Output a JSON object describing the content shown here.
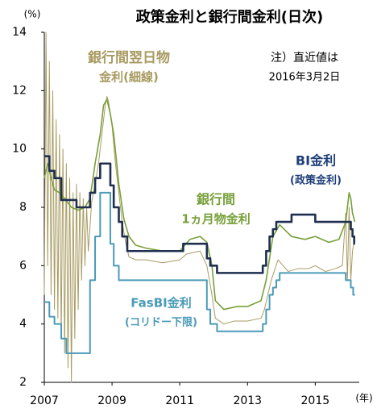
{
  "chart_data": {
    "type": "line",
    "title": "政策金利と銀行間金利(日次)",
    "y_unit": "(%)",
    "x_unit": "(年)",
    "xlim": [
      2007,
      2016.3
    ],
    "xticks": [
      2007,
      2009,
      2011,
      2013,
      2015
    ],
    "ylim": [
      2,
      14
    ],
    "yticks": [
      2,
      4,
      6,
      8,
      10,
      12,
      14
    ],
    "series": [
      {
        "name": "銀行間翌日物金利",
        "color": "#a89b62",
        "width": 1,
        "x": [
          2007.0,
          2007.05,
          2007.1,
          2007.15,
          2007.2,
          2007.25,
          2007.3,
          2007.35,
          2007.4,
          2007.45,
          2007.5,
          2007.55,
          2007.6,
          2007.65,
          2007.7,
          2007.75,
          2007.8,
          2007.85,
          2007.9,
          2007.95,
          2008.0,
          2008.05,
          2008.1,
          2008.15,
          2008.2,
          2008.25,
          2008.3,
          2008.4,
          2008.5,
          2008.6,
          2008.7,
          2008.8,
          2008.85,
          2008.9,
          2009.0,
          2009.1,
          2009.2,
          2009.3,
          2009.4,
          2009.5,
          2009.7,
          2010.0,
          2010.5,
          2011.0,
          2011.2,
          2011.6,
          2011.8,
          2011.95,
          2012.05,
          2012.3,
          2012.6,
          2013.0,
          2013.4,
          2013.5,
          2013.7,
          2013.9,
          2014.2,
          2014.5,
          2014.8,
          2015.0,
          2015.3,
          2015.6,
          2015.8,
          2015.9,
          2015.95,
          2016.0,
          2016.05,
          2016.1,
          2016.17
        ],
        "values": [
          5.0,
          14,
          6,
          13,
          5,
          12,
          4.5,
          11,
          4.2,
          10.5,
          3.5,
          10,
          3,
          9.5,
          2.5,
          9,
          2.0,
          8.5,
          3.5,
          8.8,
          4.5,
          8.5,
          5.5,
          8.3,
          6.0,
          8.0,
          6.5,
          8.2,
          8.8,
          9.5,
          10.5,
          11.5,
          11.8,
          11.6,
          10.8,
          9.5,
          8.5,
          7.5,
          6.8,
          6.3,
          6.2,
          6.2,
          6.1,
          6.2,
          6.4,
          6.5,
          6.0,
          5.0,
          4.2,
          4.0,
          4.1,
          4.1,
          4.2,
          4.5,
          5.5,
          6.2,
          5.8,
          5.9,
          5.9,
          6.0,
          5.8,
          5.9,
          6.0,
          7.8,
          5.5,
          8.0,
          5.5,
          6.5,
          7.0
        ]
      },
      {
        "name": "銀行間1ヵ月物金利",
        "color": "#77a03a",
        "width": 1.6,
        "x": [
          2007.0,
          2007.1,
          2007.2,
          2007.3,
          2007.45,
          2007.6,
          2007.8,
          2008.0,
          2008.2,
          2008.35,
          2008.5,
          2008.65,
          2008.75,
          2008.85,
          2008.95,
          2009.05,
          2009.2,
          2009.35,
          2009.5,
          2009.7,
          2010.0,
          2010.5,
          2011.0,
          2011.3,
          2011.6,
          2011.8,
          2011.95,
          2012.05,
          2012.3,
          2012.7,
          2013.0,
          2013.4,
          2013.55,
          2013.75,
          2013.95,
          2014.3,
          2014.7,
          2015.0,
          2015.4,
          2015.7,
          2015.9,
          2016.0,
          2016.05,
          2016.1,
          2016.17
        ],
        "values": [
          9.0,
          9.5,
          9.0,
          8.6,
          8.5,
          8.3,
          8.0,
          7.9,
          8.0,
          8.3,
          9.5,
          10.5,
          11.5,
          11.7,
          11.2,
          10.5,
          8.8,
          7.6,
          7.0,
          6.7,
          6.6,
          6.5,
          6.5,
          6.9,
          7.0,
          6.8,
          6.0,
          4.8,
          4.5,
          4.6,
          4.6,
          4.8,
          5.5,
          7.0,
          7.4,
          7.0,
          6.9,
          7.0,
          6.8,
          6.9,
          7.5,
          8.5,
          8.3,
          7.8,
          7.5
        ]
      },
      {
        "name": "FasBI金利",
        "color": "#4a9ab8",
        "width": 2,
        "step": true,
        "x": [
          2007.0,
          2007.15,
          2007.3,
          2007.5,
          2007.65,
          2008.35,
          2008.5,
          2008.65,
          2008.95,
          2009.05,
          2009.2,
          2011.8,
          2011.9,
          2012.1,
          2013.45,
          2013.55,
          2013.65,
          2013.75,
          2013.85,
          2013.95,
          2015.9,
          2016.05,
          2016.12,
          2016.17
        ],
        "values": [
          4.75,
          4.25,
          4.0,
          3.5,
          3.0,
          5.5,
          7.0,
          8.5,
          6.75,
          6.0,
          5.5,
          4.5,
          4.0,
          3.75,
          4.0,
          4.5,
          5.0,
          5.25,
          5.5,
          5.75,
          5.5,
          5.25,
          5.0,
          5.0
        ]
      },
      {
        "name": "BI金利",
        "color": "#1f2f4f",
        "width": 2.6,
        "step": true,
        "x": [
          2007.0,
          2007.15,
          2007.3,
          2007.5,
          2007.95,
          2008.35,
          2008.5,
          2008.65,
          2008.95,
          2009.05,
          2009.2,
          2009.3,
          2009.45,
          2011.1,
          2011.8,
          2011.9,
          2012.1,
          2013.45,
          2013.55,
          2013.65,
          2013.75,
          2013.85,
          2014.3,
          2015.0,
          2016.05,
          2016.1,
          2016.15,
          2016.17
        ],
        "values": [
          9.75,
          9.25,
          9.0,
          8.25,
          8.0,
          8.5,
          9.0,
          9.5,
          8.75,
          8.0,
          7.5,
          7.0,
          6.5,
          6.75,
          6.25,
          6.0,
          5.75,
          6.0,
          6.5,
          7.0,
          7.25,
          7.5,
          7.75,
          7.5,
          7.25,
          7.0,
          6.75,
          6.75
        ]
      }
    ],
    "annotations": [
      {
        "lines": [
          "銀行間翌日物",
          "金利(細線)"
        ],
        "color": "#a89b62"
      },
      {
        "lines": [
          "注）直近値は",
          "2016年3月2日"
        ],
        "color": "#000000"
      },
      {
        "lines": [
          "BI金利",
          "(政策金利)"
        ],
        "color": "#1f3f7a"
      },
      {
        "lines": [
          "銀行間",
          "1ヵ月物金利"
        ],
        "color": "#77a03a"
      },
      {
        "lines": [
          "FasBI金利",
          "(コリドー下限)"
        ],
        "color": "#4a9ab8"
      }
    ]
  }
}
